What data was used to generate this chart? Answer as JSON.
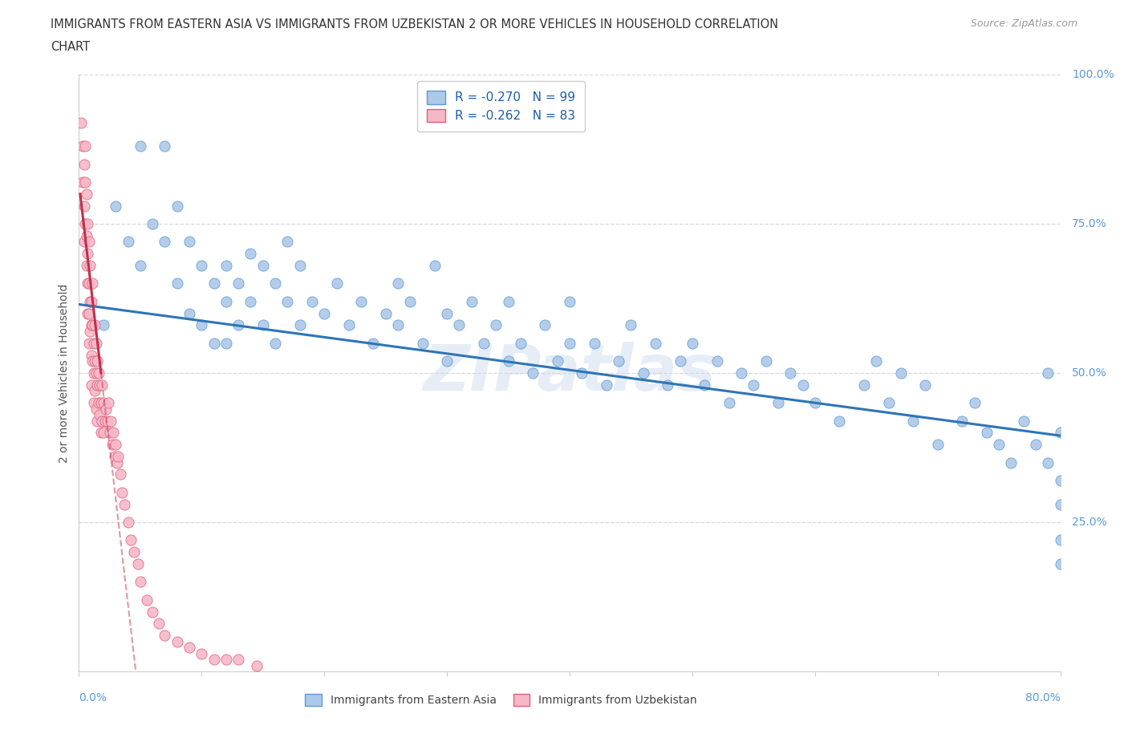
{
  "title_line1": "IMMIGRANTS FROM EASTERN ASIA VS IMMIGRANTS FROM UZBEKISTAN 2 OR MORE VEHICLES IN HOUSEHOLD CORRELATION",
  "title_line2": "CHART",
  "source": "Source: ZipAtlas.com",
  "ylabel_label": "2 or more Vehicles in Household",
  "xlim": [
    0,
    0.8
  ],
  "ylim": [
    0,
    1.0
  ],
  "series1_label": "Immigrants from Eastern Asia",
  "series2_label": "Immigrants from Uzbekistan",
  "series1_color": "#adc8e8",
  "series2_color": "#f5b8c8",
  "series1_edge_color": "#5b9bd5",
  "series2_edge_color": "#e0607a",
  "series1_line_color": "#2e75b6",
  "series2_line_color": "#c0304a",
  "legend_r1": "R = -0.270",
  "legend_n1": "N = 99",
  "legend_r2": "R = -0.262",
  "legend_n2": "N = 83",
  "watermark": "ZIPatlas",
  "background_color": "#ffffff",
  "grid_color": "#d8d8d8",
  "tick_label_color": "#5b9bd5",
  "series1_x": [
    0.02,
    0.03,
    0.04,
    0.05,
    0.05,
    0.06,
    0.07,
    0.07,
    0.08,
    0.08,
    0.09,
    0.09,
    0.1,
    0.1,
    0.11,
    0.11,
    0.12,
    0.12,
    0.12,
    0.13,
    0.13,
    0.14,
    0.14,
    0.15,
    0.15,
    0.16,
    0.16,
    0.17,
    0.17,
    0.18,
    0.18,
    0.19,
    0.2,
    0.21,
    0.22,
    0.23,
    0.24,
    0.25,
    0.26,
    0.26,
    0.27,
    0.28,
    0.29,
    0.3,
    0.3,
    0.31,
    0.32,
    0.33,
    0.34,
    0.35,
    0.35,
    0.36,
    0.37,
    0.38,
    0.39,
    0.4,
    0.4,
    0.41,
    0.42,
    0.43,
    0.44,
    0.45,
    0.46,
    0.47,
    0.48,
    0.49,
    0.5,
    0.51,
    0.52,
    0.53,
    0.54,
    0.55,
    0.56,
    0.57,
    0.58,
    0.59,
    0.6,
    0.62,
    0.64,
    0.65,
    0.66,
    0.67,
    0.68,
    0.69,
    0.7,
    0.72,
    0.73,
    0.74,
    0.75,
    0.76,
    0.77,
    0.78,
    0.79,
    0.79,
    0.8,
    0.8,
    0.8,
    0.8,
    0.8
  ],
  "series1_y": [
    0.58,
    0.78,
    0.72,
    0.88,
    0.68,
    0.75,
    0.88,
    0.72,
    0.78,
    0.65,
    0.72,
    0.6,
    0.68,
    0.58,
    0.65,
    0.55,
    0.68,
    0.62,
    0.55,
    0.65,
    0.58,
    0.7,
    0.62,
    0.68,
    0.58,
    0.65,
    0.55,
    0.72,
    0.62,
    0.68,
    0.58,
    0.62,
    0.6,
    0.65,
    0.58,
    0.62,
    0.55,
    0.6,
    0.65,
    0.58,
    0.62,
    0.55,
    0.68,
    0.6,
    0.52,
    0.58,
    0.62,
    0.55,
    0.58,
    0.52,
    0.62,
    0.55,
    0.5,
    0.58,
    0.52,
    0.55,
    0.62,
    0.5,
    0.55,
    0.48,
    0.52,
    0.58,
    0.5,
    0.55,
    0.48,
    0.52,
    0.55,
    0.48,
    0.52,
    0.45,
    0.5,
    0.48,
    0.52,
    0.45,
    0.5,
    0.48,
    0.45,
    0.42,
    0.48,
    0.52,
    0.45,
    0.5,
    0.42,
    0.48,
    0.38,
    0.42,
    0.45,
    0.4,
    0.38,
    0.35,
    0.42,
    0.38,
    0.35,
    0.5,
    0.32,
    0.4,
    0.28,
    0.22,
    0.18
  ],
  "series2_x": [
    0.002,
    0.003,
    0.003,
    0.004,
    0.004,
    0.004,
    0.005,
    0.005,
    0.005,
    0.006,
    0.006,
    0.006,
    0.007,
    0.007,
    0.007,
    0.007,
    0.008,
    0.008,
    0.008,
    0.008,
    0.009,
    0.009,
    0.009,
    0.01,
    0.01,
    0.01,
    0.01,
    0.011,
    0.011,
    0.011,
    0.012,
    0.012,
    0.012,
    0.013,
    0.013,
    0.013,
    0.014,
    0.014,
    0.014,
    0.015,
    0.015,
    0.015,
    0.016,
    0.016,
    0.017,
    0.017,
    0.018,
    0.018,
    0.019,
    0.019,
    0.02,
    0.02,
    0.021,
    0.022,
    0.023,
    0.024,
    0.025,
    0.026,
    0.027,
    0.028,
    0.029,
    0.03,
    0.031,
    0.032,
    0.034,
    0.035,
    0.037,
    0.04,
    0.042,
    0.045,
    0.048,
    0.05,
    0.055,
    0.06,
    0.065,
    0.07,
    0.08,
    0.09,
    0.1,
    0.11,
    0.12,
    0.13,
    0.145
  ],
  "series2_y": [
    0.92,
    0.88,
    0.82,
    0.85,
    0.78,
    0.72,
    0.88,
    0.82,
    0.75,
    0.8,
    0.73,
    0.68,
    0.75,
    0.7,
    0.65,
    0.6,
    0.72,
    0.65,
    0.6,
    0.55,
    0.68,
    0.62,
    0.57,
    0.62,
    0.58,
    0.53,
    0.48,
    0.65,
    0.58,
    0.52,
    0.55,
    0.5,
    0.45,
    0.58,
    0.52,
    0.47,
    0.55,
    0.5,
    0.44,
    0.52,
    0.48,
    0.42,
    0.5,
    0.45,
    0.48,
    0.43,
    0.45,
    0.4,
    0.48,
    0.42,
    0.45,
    0.4,
    0.42,
    0.44,
    0.42,
    0.45,
    0.4,
    0.42,
    0.38,
    0.4,
    0.36,
    0.38,
    0.35,
    0.36,
    0.33,
    0.3,
    0.28,
    0.25,
    0.22,
    0.2,
    0.18,
    0.15,
    0.12,
    0.1,
    0.08,
    0.06,
    0.05,
    0.04,
    0.03,
    0.02,
    0.02,
    0.02,
    0.01
  ]
}
